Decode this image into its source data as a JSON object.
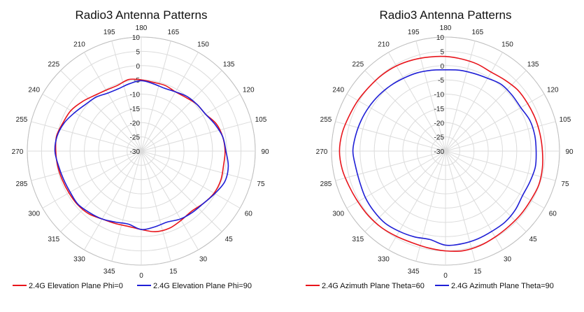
{
  "chart_data": [
    {
      "type": "polar",
      "title": "Radio3 Antenna Patterns",
      "radial_ticks": [
        10,
        5,
        0,
        -5,
        -10,
        -15,
        -20,
        -25,
        -30
      ],
      "r_range": [
        -30,
        10
      ],
      "angle_ticks": [
        0,
        15,
        30,
        45,
        60,
        75,
        90,
        105,
        120,
        135,
        150,
        165,
        180,
        195,
        210,
        225,
        240,
        255,
        270,
        285,
        300,
        315,
        330,
        345
      ],
      "angle_zero_at": "bottom",
      "angle_direction": "counterclockwise",
      "grid": true,
      "legend_position": "bottom",
      "series": [
        {
          "name": "2.4G Elevation Plane Phi=0",
          "color": "#e8141b",
          "theta": [
            0,
            10,
            20,
            30,
            40,
            50,
            60,
            70,
            80,
            90,
            100,
            110,
            120,
            130,
            140,
            150,
            160,
            170,
            180,
            190,
            200,
            210,
            220,
            230,
            240,
            250,
            260,
            270,
            280,
            290,
            300,
            310,
            320,
            330,
            340,
            350
          ],
          "r": [
            -2.5,
            -1.3,
            -1.2,
            -2.0,
            -2.5,
            -1.5,
            -0.5,
            -0.3,
            -0.7,
            -0.6,
            -1.0,
            -2.0,
            -4.0,
            -4.5,
            -5.5,
            -6.0,
            -5.5,
            -5.5,
            -5.0,
            -4.5,
            -5.5,
            -5.3,
            -4.5,
            -3.0,
            -1.5,
            -0.8,
            0.2,
            0.0,
            -0.2,
            -0.5,
            -0.7,
            -0.8,
            -1.3,
            -2.5,
            -3.0,
            -3.2
          ]
        },
        {
          "name": "2.4G Elevation Plane Phi=90",
          "color": "#1f1fd6",
          "theta": [
            0,
            10,
            20,
            30,
            40,
            50,
            60,
            70,
            80,
            90,
            100,
            110,
            120,
            130,
            140,
            150,
            160,
            170,
            180,
            190,
            200,
            210,
            220,
            230,
            240,
            250,
            260,
            270,
            280,
            290,
            300,
            310,
            320,
            330,
            340,
            350
          ],
          "r": [
            -2.5,
            -3.0,
            -3.5,
            -2.5,
            -2.0,
            -1.5,
            -0.2,
            1.2,
            1.0,
            -0.3,
            -1.0,
            -2.5,
            -4.0,
            -4.5,
            -5.0,
            -6.0,
            -6.5,
            -6.0,
            -5.3,
            -6.0,
            -6.7,
            -6.5,
            -5.3,
            -4.5,
            -3.0,
            -1.2,
            0.0,
            0.3,
            -0.5,
            -1.0,
            -1.2,
            -1.0,
            -1.8,
            -2.5,
            -3.5,
            -4.0
          ]
        }
      ]
    },
    {
      "type": "polar",
      "title": "Radio3 Antenna Patterns",
      "radial_ticks": [
        10,
        5,
        0,
        -5,
        -10,
        -15,
        -20,
        -25,
        -30
      ],
      "r_range": [
        -30,
        10
      ],
      "angle_ticks": [
        0,
        15,
        30,
        45,
        60,
        75,
        90,
        105,
        120,
        135,
        150,
        165,
        180,
        195,
        210,
        225,
        240,
        255,
        270,
        285,
        300,
        315,
        330,
        345
      ],
      "angle_zero_at": "bottom",
      "angle_direction": "counterclockwise",
      "grid": true,
      "legend_position": "bottom",
      "series": [
        {
          "name": "2.4G Azimuth Plane Theta=60",
          "color": "#e8141b",
          "theta": [
            0,
            10,
            20,
            30,
            40,
            50,
            60,
            70,
            80,
            90,
            100,
            110,
            120,
            130,
            140,
            150,
            160,
            170,
            180,
            190,
            200,
            210,
            220,
            230,
            240,
            250,
            260,
            270,
            280,
            290,
            300,
            310,
            320,
            330,
            340,
            350
          ],
          "r": [
            5.0,
            5.5,
            5.3,
            4.8,
            4.5,
            4.5,
            4.5,
            4.8,
            4.5,
            4.0,
            3.7,
            3.5,
            3.3,
            3.2,
            2.5,
            2.0,
            2.5,
            2.8,
            3.2,
            3.5,
            4.0,
            4.5,
            4.8,
            5.0,
            5.5,
            6.0,
            6.8,
            7.2,
            6.8,
            6.0,
            5.5,
            5.3,
            5.0,
            4.5,
            4.2,
            4.5
          ]
        },
        {
          "name": "2.4G Azimuth Plane Theta=90",
          "color": "#1f1fd6",
          "theta": [
            0,
            10,
            20,
            30,
            40,
            50,
            60,
            70,
            80,
            90,
            100,
            110,
            120,
            130,
            140,
            150,
            160,
            170,
            180,
            190,
            200,
            210,
            220,
            230,
            240,
            250,
            260,
            270,
            280,
            290,
            300,
            310,
            320,
            330,
            340,
            350
          ],
          "r": [
            3.0,
            3.0,
            2.8,
            2.5,
            2.5,
            2.0,
            1.2,
            1.5,
            2.0,
            1.8,
            1.8,
            1.5,
            0.5,
            0.5,
            0.5,
            -0.5,
            -1.0,
            -1.2,
            -1.5,
            -1.2,
            -0.8,
            -0.5,
            0.0,
            0.5,
            1.0,
            1.5,
            2.0,
            2.5,
            2.0,
            2.0,
            2.5,
            2.8,
            3.0,
            2.5,
            2.0,
            1.5
          ]
        }
      ]
    }
  ]
}
